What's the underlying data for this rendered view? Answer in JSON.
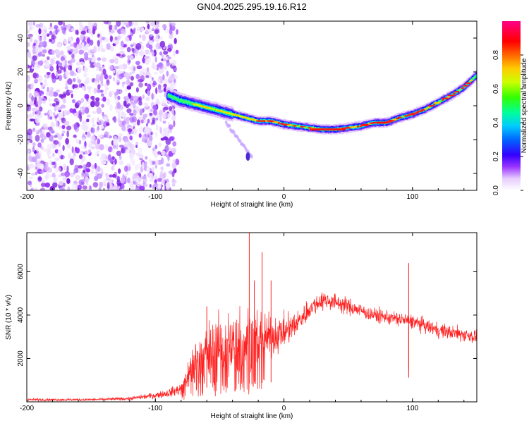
{
  "chart_data": [
    {
      "type": "heatmap",
      "title": "GN04.2025.295.19.16.R12",
      "xlabel": "Height of straight line (km)",
      "ylabel": "Frequency (Hz)",
      "xlim": [
        -200,
        150
      ],
      "ylim": [
        -50,
        50
      ],
      "x_ticks": [
        -200,
        -100,
        0,
        100
      ],
      "y_ticks": [
        -40,
        -20,
        0,
        20,
        40
      ],
      "colorbar": {
        "label": "Normalized spectral amplitude",
        "range": [
          0,
          1
        ],
        "ticks": [
          "0.0",
          "0.2",
          "0.4",
          "0.6",
          "0.8"
        ]
      },
      "trace_points": {
        "x": [
          -90,
          -80,
          -70,
          -60,
          -50,
          -40,
          -30,
          -20,
          -10,
          0,
          10,
          20,
          30,
          40,
          50,
          60,
          70,
          80,
          90,
          100,
          110,
          120,
          130,
          140,
          150
        ],
        "y": [
          6,
          3,
          1,
          -1,
          -3,
          -5,
          -7,
          -9,
          -9,
          -11,
          -12,
          -13,
          -14,
          -14,
          -13,
          -12,
          -10,
          -10,
          -7,
          -5,
          -2,
          2,
          6,
          11,
          18
        ]
      },
      "noise_region_x": [
        -200,
        -83
      ],
      "side_branch": {
        "x": [
          -45,
          -25
        ],
        "y": [
          -10,
          -30
        ]
      }
    },
    {
      "type": "line",
      "title": "",
      "xlabel": "Height of straight line (km)",
      "ylabel": "SNR (10 * v/v)",
      "xlim": [
        -200,
        150
      ],
      "ylim": [
        0,
        7800
      ],
      "x_ticks": [
        -200,
        -100,
        0,
        100
      ],
      "y_ticks": [
        2000,
        4000,
        6000
      ],
      "series": [
        {
          "name": "SNR",
          "color": "#ff2020",
          "envelope_x": [
            -200,
            -150,
            -120,
            -100,
            -90,
            -80,
            -75,
            -70,
            -60,
            -50,
            -40,
            -30,
            -20,
            -10,
            0,
            10,
            20,
            30,
            40,
            50,
            60,
            70,
            80,
            90,
            100,
            110,
            120,
            130,
            140,
            150
          ],
          "envelope_mean": [
            100,
            100,
            150,
            300,
            400,
            600,
            1200,
            1800,
            2200,
            2500,
            2600,
            2800,
            2900,
            3000,
            3200,
            3600,
            4300,
            4700,
            4600,
            4400,
            4200,
            4000,
            3900,
            3800,
            3700,
            3500,
            3300,
            3200,
            3100,
            3000
          ],
          "envelope_spread": [
            60,
            60,
            80,
            150,
            200,
            300,
            700,
            1200,
            1500,
            1700,
            1800,
            1800,
            1500,
            900,
            800,
            600,
            500,
            450,
            400,
            400,
            350,
            350,
            350,
            350,
            350,
            350,
            350,
            350,
            350,
            350
          ],
          "spikes": [
            {
              "x": -27,
              "y": 7800
            },
            {
              "x": -17,
              "y": 6900
            },
            {
              "x": -23,
              "y": 5600
            },
            {
              "x": -10,
              "y": 5600
            },
            {
              "x": 97,
              "y": 6400
            },
            {
              "x": -60,
              "y": 4400
            }
          ]
        }
      ]
    }
  ]
}
